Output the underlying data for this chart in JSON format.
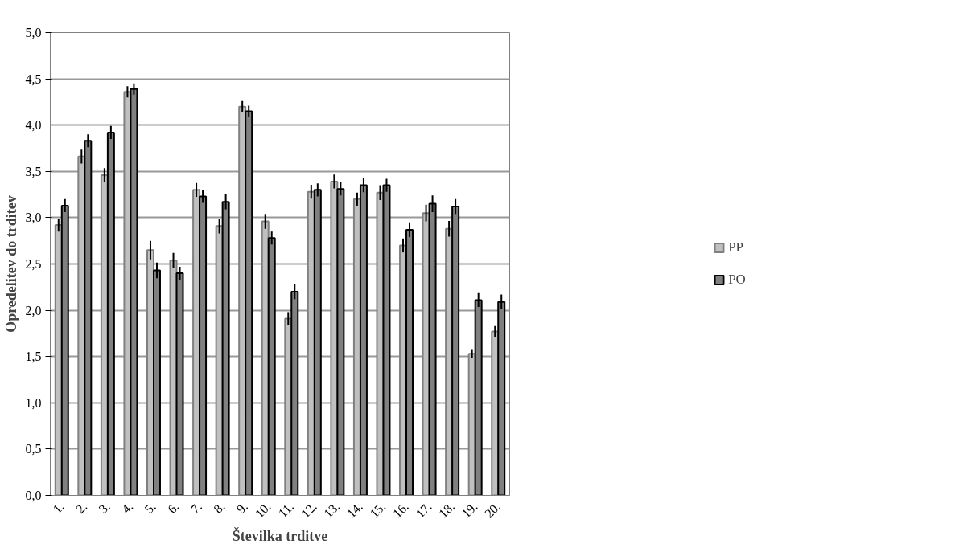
{
  "chart_data": {
    "type": "bar",
    "xlabel": "Številka trditve",
    "ylabel": "Opredelitev do trditev",
    "categories": [
      "1.",
      "2.",
      "3.",
      "4.",
      "5.",
      "6.",
      "7.",
      "8.",
      "9.",
      "10.",
      "11.",
      "12.",
      "13.",
      "14.",
      "15.",
      "16.",
      "17.",
      "18.",
      "19.",
      "20."
    ],
    "series": [
      {
        "name": "PP",
        "color": "#c0c0c0",
        "values": [
          2.92,
          3.66,
          3.46,
          4.36,
          2.65,
          2.54,
          3.3,
          2.91,
          4.2,
          2.96,
          1.91,
          3.28,
          3.39,
          3.2,
          3.27,
          2.7,
          3.05,
          2.88,
          1.53,
          1.77
        ],
        "errors": [
          0.07,
          0.075,
          0.075,
          0.06,
          0.1,
          0.08,
          0.075,
          0.08,
          0.06,
          0.08,
          0.07,
          0.075,
          0.075,
          0.07,
          0.08,
          0.075,
          0.09,
          0.085,
          0.05,
          0.06
        ]
      },
      {
        "name": "PO",
        "color": "#808080",
        "values": [
          3.13,
          3.83,
          3.92,
          4.39,
          2.43,
          2.4,
          3.23,
          3.17,
          4.15,
          2.78,
          2.2,
          3.3,
          3.31,
          3.35,
          3.35,
          2.87,
          3.15,
          3.12,
          2.11,
          2.09
        ],
        "errors": [
          0.07,
          0.07,
          0.07,
          0.06,
          0.085,
          0.07,
          0.07,
          0.08,
          0.06,
          0.07,
          0.08,
          0.07,
          0.07,
          0.075,
          0.07,
          0.08,
          0.09,
          0.08,
          0.075,
          0.08
        ]
      }
    ],
    "ylim": [
      0,
      5
    ],
    "yticks": [
      {
        "value": 0,
        "label": "0,0"
      },
      {
        "value": 0.5,
        "label": "0,5"
      },
      {
        "value": 1,
        "label": "1,0"
      },
      {
        "value": 1.5,
        "label": "1,5"
      },
      {
        "value": 2,
        "label": "2,0"
      },
      {
        "value": 2.5,
        "label": "2,5"
      },
      {
        "value": 3,
        "label": "3,0"
      },
      {
        "value": 3.5,
        "label": "3,5"
      },
      {
        "value": 4,
        "label": "4,0"
      },
      {
        "value": 4.5,
        "label": "4,5"
      },
      {
        "value": 5,
        "label": "5,0"
      }
    ],
    "grid": "y",
    "legend": "right"
  }
}
